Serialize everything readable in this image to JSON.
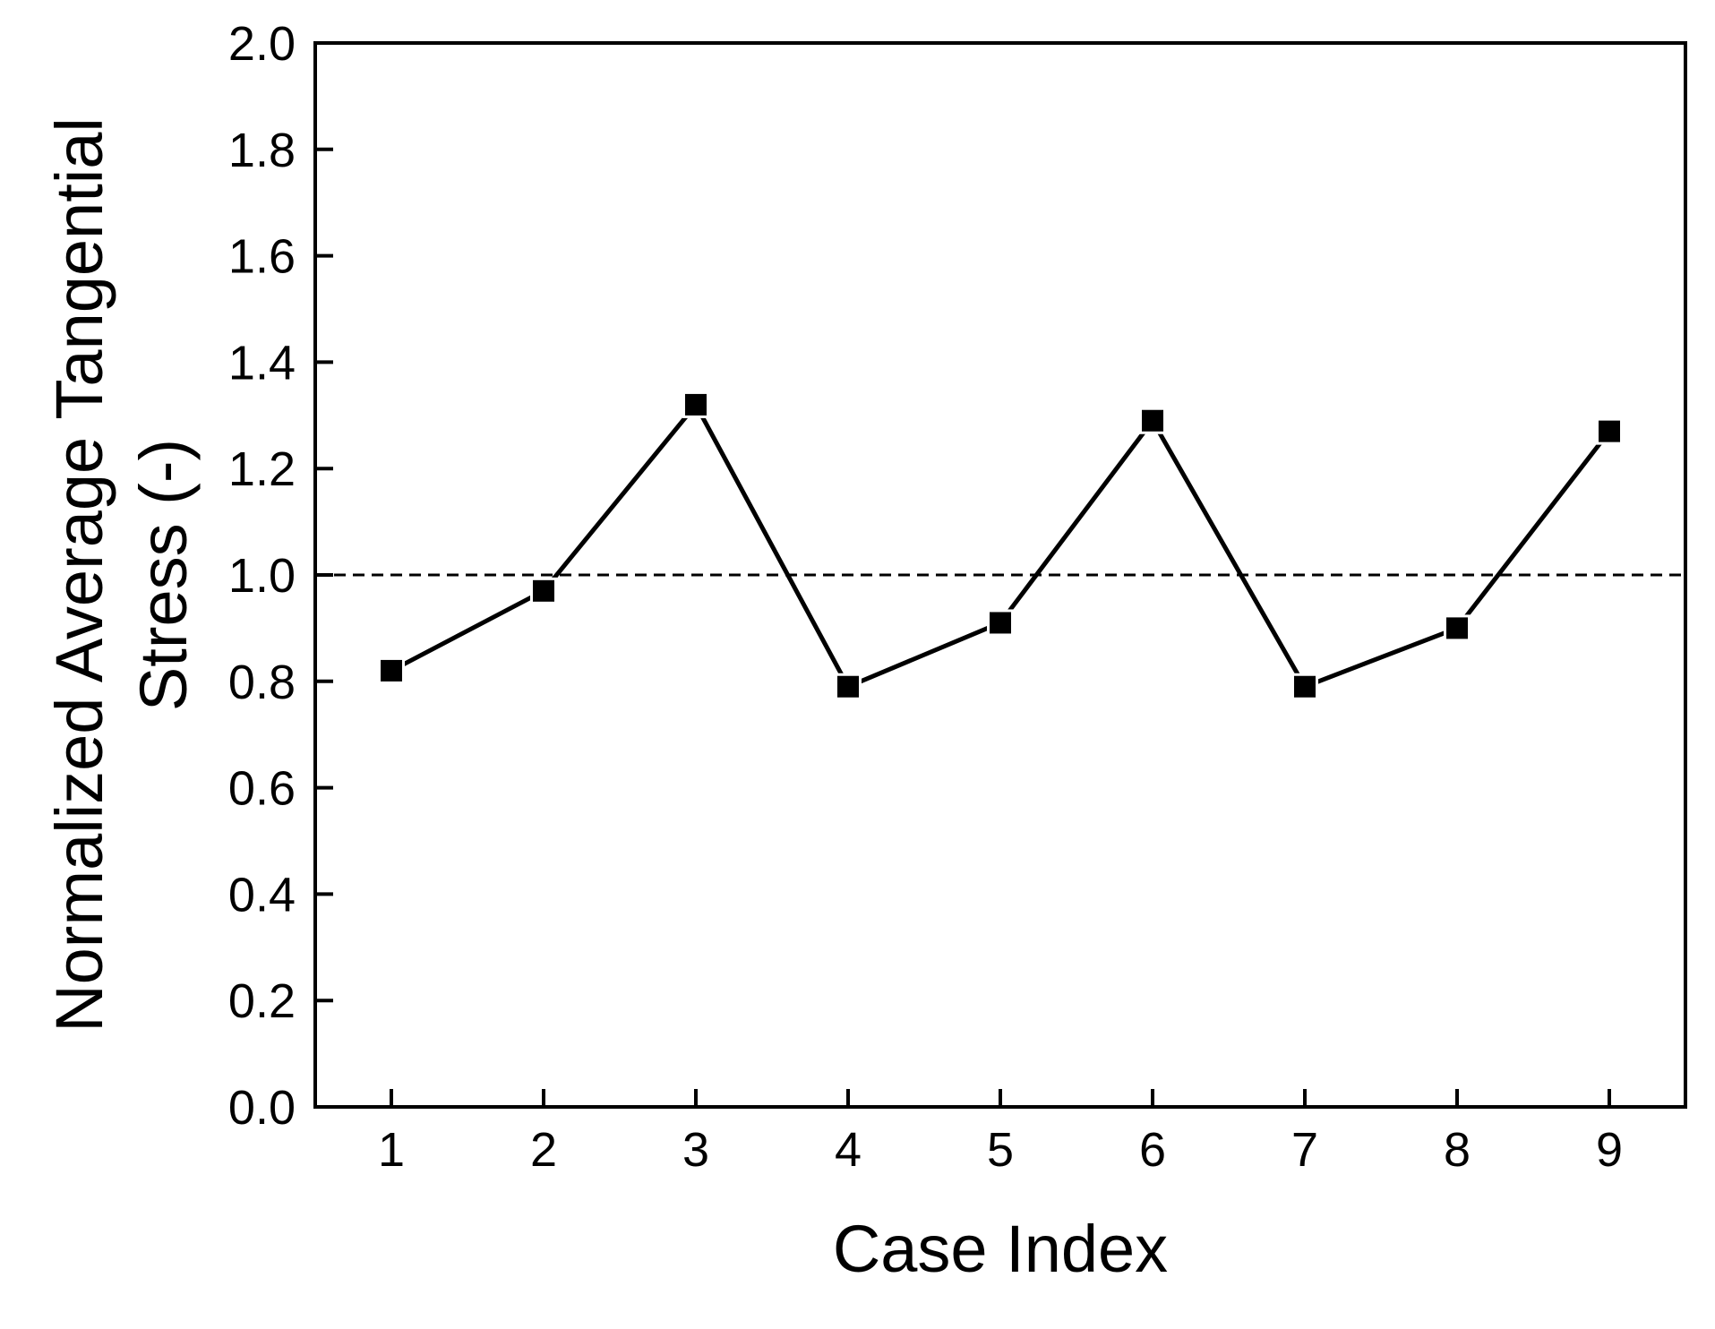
{
  "figure": {
    "background": "#ffffff",
    "foreground": "#000000"
  },
  "chart_data": {
    "type": "line",
    "title": "",
    "xlabel": "Case Index",
    "ylabel": "Normalized Average Tangential Stress (-)",
    "ylabel_lines": [
      "Normalized Average Tangential",
      "Stress (-)"
    ],
    "x": [
      1,
      2,
      3,
      4,
      5,
      6,
      7,
      8,
      9
    ],
    "series": [
      {
        "name": "normalized-average-tangential-stress",
        "values": [
          0.82,
          0.97,
          1.32,
          0.79,
          0.91,
          1.29,
          0.79,
          0.9,
          1.27
        ]
      }
    ],
    "xtick_labels": [
      "1",
      "2",
      "3",
      "4",
      "5",
      "6",
      "7",
      "8",
      "9"
    ],
    "ytick_labels": [
      "0.0",
      "0.2",
      "0.4",
      "0.6",
      "0.8",
      "1.0",
      "1.2",
      "1.4",
      "1.6",
      "1.8",
      "2.0"
    ],
    "xlim": [
      0.5,
      9.5
    ],
    "ylim": [
      0.0,
      2.0
    ],
    "ytick_step": 0.2,
    "reference_line": {
      "value": 1.0,
      "style": "dashed",
      "color": "#000000"
    },
    "marker": "filled-square",
    "line_color": "#000000",
    "marker_color": "#000000",
    "grid": false,
    "legend_position": "none"
  }
}
